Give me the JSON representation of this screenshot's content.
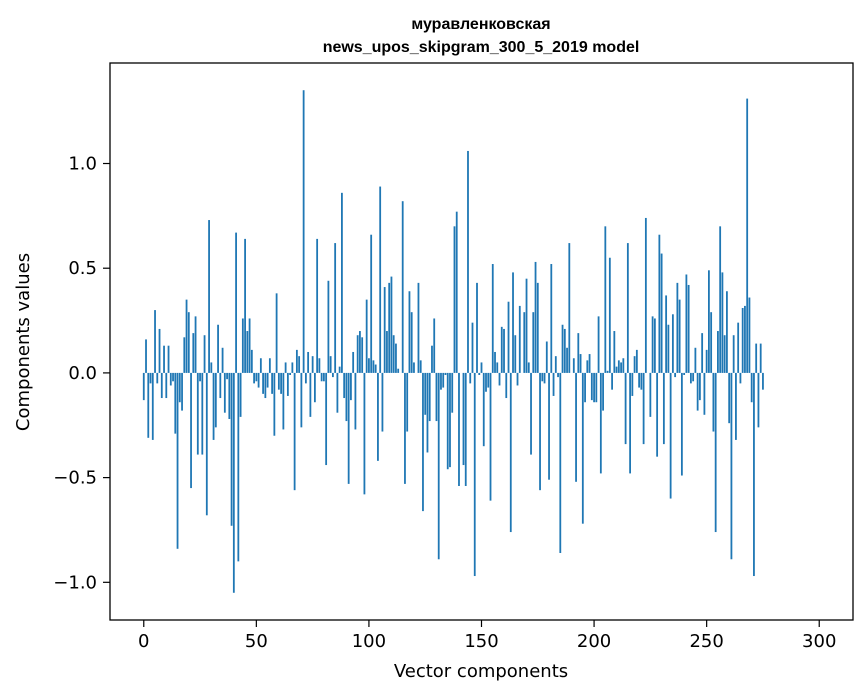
{
  "chart_data": {
    "type": "bar",
    "title_lines": [
      "муравленковская",
      "news_upos_skipgram_300_5_2019 model"
    ],
    "xlabel": "Vector components",
    "ylabel": "Components values",
    "xlim": [
      -15,
      315
    ],
    "ylim": [
      -1.18,
      1.48
    ],
    "xticks": [
      0,
      50,
      100,
      150,
      200,
      250,
      300
    ],
    "xtick_labels": [
      "0",
      "50",
      "100",
      "150",
      "200",
      "250",
      "300"
    ],
    "yticks": [
      -1.0,
      -0.5,
      0.0,
      0.5,
      1.0
    ],
    "ytick_labels": [
      "−1.0",
      "−0.5",
      "0.0",
      "0.5",
      "1.0"
    ],
    "bar_color": "#1f77b4",
    "grid": false,
    "series": [
      {
        "name": "components",
        "values": [
          -0.13,
          0.16,
          -0.31,
          -0.05,
          -0.32,
          0.3,
          -0.05,
          0.21,
          -0.12,
          0.13,
          -0.12,
          0.13,
          -0.06,
          -0.04,
          -0.29,
          -0.84,
          -0.14,
          -0.18,
          0.17,
          0.35,
          0.29,
          -0.55,
          0.19,
          0.27,
          -0.39,
          -0.04,
          -0.39,
          0.18,
          -0.68,
          0.73,
          0.05,
          -0.32,
          -0.26,
          0.23,
          -0.12,
          0.12,
          -0.19,
          -0.03,
          -0.22,
          -0.73,
          -1.05,
          0.67,
          -0.9,
          -0.21,
          0.26,
          0.64,
          0.2,
          0.26,
          0.11,
          -0.05,
          -0.04,
          -0.07,
          0.07,
          -0.1,
          -0.12,
          -0.07,
          0.07,
          -0.1,
          -0.3,
          0.38,
          -0.08,
          -0.1,
          -0.27,
          0.05,
          -0.11,
          -0.01,
          0.05,
          -0.56,
          0.11,
          0.08,
          -0.26,
          1.35,
          -0.05,
          0.1,
          -0.21,
          0.08,
          -0.14,
          0.64,
          0.07,
          -0.04,
          -0.04,
          -0.44,
          0.44,
          0.08,
          -0.02,
          0.62,
          -0.19,
          0.03,
          0.86,
          -0.12,
          -0.23,
          -0.53,
          -0.13,
          0.1,
          -0.27,
          0.18,
          0.2,
          0.17,
          -0.58,
          0.35,
          0.07,
          0.66,
          0.06,
          0.04,
          -0.42,
          0.89,
          -0.28,
          0.41,
          0.2,
          0.43,
          0.46,
          0.18,
          0.14,
          0.02,
          0.0,
          0.82,
          -0.53,
          -0.28,
          0.39,
          0.29,
          0.05,
          0.0,
          0.43,
          0.06,
          -0.66,
          -0.2,
          -0.38,
          -0.23,
          0.13,
          0.26,
          -0.23,
          -0.89,
          -0.08,
          -0.07,
          -0.01,
          -0.46,
          -0.45,
          -0.19,
          0.7,
          0.77,
          -0.54,
          0.0,
          -0.44,
          -0.54,
          1.06,
          -0.05,
          0.24,
          -0.97,
          0.43,
          -0.01,
          0.05,
          -0.35,
          -0.09,
          -0.07,
          -0.61,
          0.52,
          0.1,
          0.05,
          -0.06,
          0.22,
          0.21,
          -0.12,
          0.34,
          -0.76,
          0.48,
          0.18,
          -0.06,
          0.32,
          0.0,
          0.29,
          0.45,
          0.05,
          -0.39,
          0.29,
          0.53,
          0.43,
          -0.56,
          -0.04,
          -0.05,
          0.15,
          -0.51,
          0.52,
          -0.11,
          0.08,
          -0.02,
          -0.86,
          0.23,
          0.21,
          0.12,
          0.62,
          0.0,
          0.07,
          -0.52,
          0.19,
          0.09,
          -0.72,
          -0.14,
          0.06,
          0.09,
          -0.13,
          -0.14,
          -0.14,
          0.27,
          -0.48,
          -0.18,
          0.7,
          0.01,
          0.55,
          -0.08,
          0.2,
          0.03,
          0.06,
          0.05,
          0.07,
          -0.34,
          0.62,
          -0.48,
          -0.11,
          0.08,
          0.11,
          -0.07,
          -0.08,
          -0.34,
          0.74,
          0.0,
          -0.21,
          0.27,
          0.26,
          -0.4,
          0.66,
          0.57,
          -0.34,
          0.37,
          0.23,
          -0.6,
          0.28,
          -0.02,
          0.43,
          0.35,
          -0.49,
          -0.01,
          0.47,
          0.42,
          -0.05,
          -0.04,
          0.12,
          -0.18,
          -0.13,
          0.19,
          -0.2,
          0.11,
          0.49,
          0.29,
          -0.28,
          -0.76,
          0.2,
          0.7,
          0.48,
          0.18,
          0.39,
          -0.24,
          -0.89,
          0.18,
          -0.32,
          0.24,
          -0.05,
          0.31,
          0.32,
          1.31,
          0.36,
          -0.14,
          -0.97,
          0.14,
          -0.26,
          0.14,
          -0.08
        ]
      }
    ]
  }
}
